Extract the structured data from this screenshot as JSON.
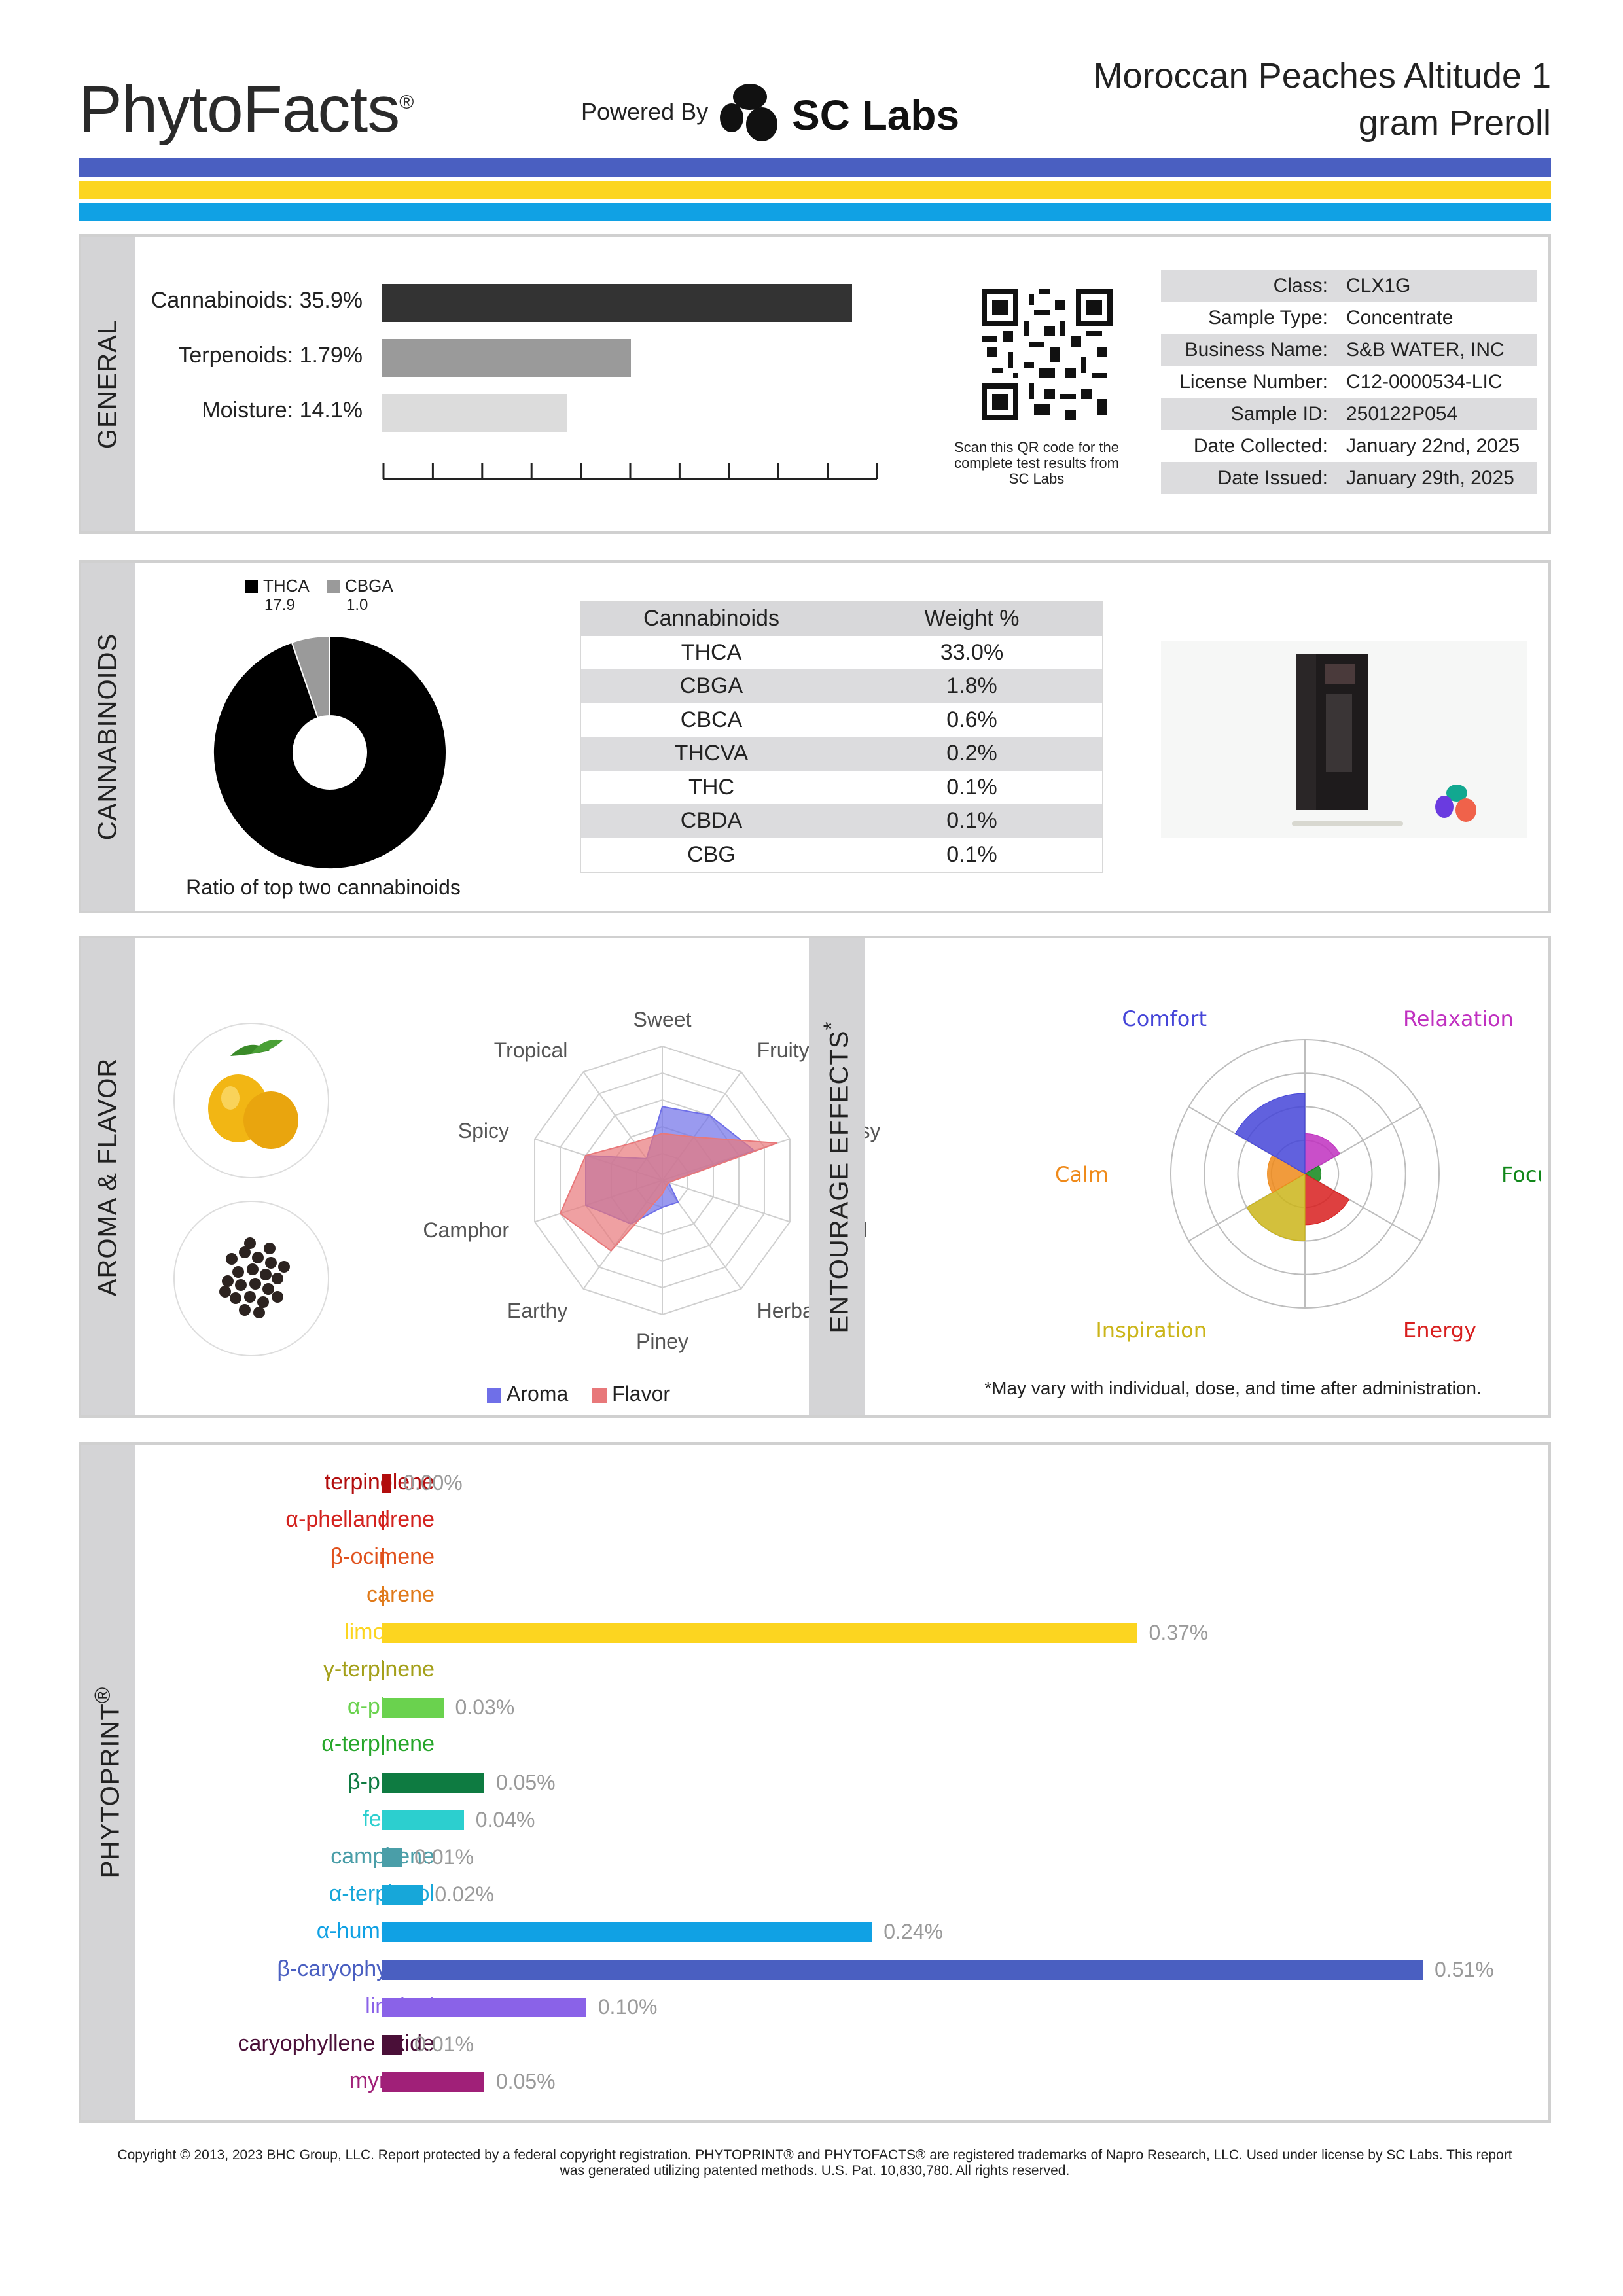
{
  "header": {
    "brand": "PhytoFacts",
    "brand_mark": "®",
    "powered_by": "Powered By",
    "lab_logo_text": "SC Labs",
    "title_line1": "Moroccan Peaches Altitude 1",
    "title_line2": "gram Preroll"
  },
  "colors": {
    "stripe_top": "#4a5fc1",
    "stripe_mid": "#fcd520",
    "stripe_bottom": "#10a1e4"
  },
  "general": {
    "tab": "GENERAL",
    "rows": [
      {
        "label": "Cannabinoids:",
        "value": "35.9%",
        "fraction": 0.718,
        "color": "#333333"
      },
      {
        "label": "Terpenoids:",
        "value": "1.79%",
        "fraction": 0.38,
        "color": "#9a9a9a"
      },
      {
        "label": "Moisture:",
        "value": "14.1%",
        "fraction": 0.282,
        "color": "#dcdcdc"
      }
    ],
    "qr_caption": "Scan this QR code for the complete test results from SC Labs",
    "info": [
      {
        "key": "Class:",
        "value": "CLX1G"
      },
      {
        "key": "Sample Type:",
        "value": "Concentrate"
      },
      {
        "key": "Business Name:",
        "value": "S&B WATER, INC"
      },
      {
        "key": "License Number:",
        "value": "C12-0000534-LIC"
      },
      {
        "key": "Sample ID:",
        "value": "250122P054"
      },
      {
        "key": "Date Collected:",
        "value": "January 22nd, 2025"
      },
      {
        "key": "Date Issued:",
        "value": "January 29th, 2025"
      }
    ]
  },
  "cannabinoids": {
    "tab": "CANNABINOIDS",
    "legend": [
      {
        "name": "THCA",
        "value": "17.9",
        "color": "#000000"
      },
      {
        "name": "CBGA",
        "value": "1.0",
        "color": "#9a9a9a"
      }
    ],
    "ratio_caption": "Ratio of top two cannabinoids",
    "table_header": {
      "col1": "Cannabinoids",
      "col2": "Weight %"
    },
    "table": [
      {
        "name": "THCA",
        "weight": "33.0%"
      },
      {
        "name": "CBGA",
        "weight": "1.8%"
      },
      {
        "name": "CBCA",
        "weight": "0.6%"
      },
      {
        "name": "THCVA",
        "weight": "0.2%"
      },
      {
        "name": "THC",
        "weight": "0.1%"
      },
      {
        "name": "CBDA",
        "weight": "0.1%"
      },
      {
        "name": "CBG",
        "weight": "0.1%"
      }
    ]
  },
  "aroma": {
    "tab": "AROMA & FLAVOR",
    "image1": "lemon-icon",
    "image2": "peppercorn-icon",
    "axes": [
      "Sweet",
      "Fruity",
      "Citrusy",
      "Floral",
      "Herbal",
      "Piney",
      "Earthy",
      "Camphor",
      "Spicy",
      "Tropical"
    ],
    "aroma_values": [
      0.55,
      0.6,
      0.72,
      0.05,
      0.2,
      0.2,
      0.4,
      0.6,
      0.6,
      0.2
    ],
    "flavor_values": [
      0.35,
      0.4,
      0.9,
      0.05,
      0.05,
      0.1,
      0.65,
      0.8,
      0.6,
      0.35
    ],
    "legend": [
      {
        "name": "Aroma",
        "color": "#6f6fe8"
      },
      {
        "name": "Flavor",
        "color": "#e8787a"
      }
    ]
  },
  "entourage": {
    "tab": "ENTOURAGE EFFECTS",
    "tab_mark": "*",
    "labels": [
      {
        "name": "Relaxation",
        "color": "#c030c0"
      },
      {
        "name": "Focus",
        "color": "#11871a"
      },
      {
        "name": "Energy",
        "color": "#d81e1e"
      },
      {
        "name": "Inspiration",
        "color": "#cbb51a"
      },
      {
        "name": "Calm",
        "color": "#ef8a1a"
      },
      {
        "name": "Comfort",
        "color": "#4545d8"
      }
    ],
    "values": [
      0.3,
      0.12,
      0.38,
      0.5,
      0.28,
      0.6
    ],
    "note": "*May vary with individual, dose, and time after administration."
  },
  "phytoprint": {
    "tab": "PHYTOPRINT",
    "tab_mark": "®",
    "terpenes": [
      {
        "name": "terpinolene",
        "value": 0.0,
        "label": "0.00%",
        "color": "#b20d0d"
      },
      {
        "name": "α-phellandrene",
        "value": 0.0,
        "label": "",
        "color": "#d3221e"
      },
      {
        "name": "β-ocimene",
        "value": 0.0,
        "label": "",
        "color": "#e0511c"
      },
      {
        "name": "carene",
        "value": 0.0,
        "label": "",
        "color": "#e07a1a"
      },
      {
        "name": "limonene",
        "value": 0.37,
        "label": "0.37%",
        "color": "#fcd520"
      },
      {
        "name": "γ-terpinene",
        "value": 0.0,
        "label": "",
        "color": "#a4a01a"
      },
      {
        "name": "α-pinene",
        "value": 0.03,
        "label": "0.03%",
        "color": "#6ad24e"
      },
      {
        "name": "α-terpinene",
        "value": 0.0,
        "label": "",
        "color": "#26a62a"
      },
      {
        "name": "β-pinene",
        "value": 0.05,
        "label": "0.05%",
        "color": "#0e7b41"
      },
      {
        "name": "fenchol",
        "value": 0.04,
        "label": "0.04%",
        "color": "#2ccfcf"
      },
      {
        "name": "camphene",
        "value": 0.01,
        "label": "0.01%",
        "color": "#4a9ea8"
      },
      {
        "name": "α-terpineol",
        "value": 0.02,
        "label": "0.02%",
        "color": "#17a7d9"
      },
      {
        "name": "α-humulene",
        "value": 0.24,
        "label": "0.24%",
        "color": "#10a1e4"
      },
      {
        "name": "β-caryophyllene",
        "value": 0.51,
        "label": "0.51%",
        "color": "#4a5fc1"
      },
      {
        "name": "linalool",
        "value": 0.1,
        "label": "0.10%",
        "color": "#8a62e8"
      },
      {
        "name": "caryophyllene oxide",
        "value": 0.01,
        "label": "0.01%",
        "color": "#4a0f38"
      },
      {
        "name": "myrcene",
        "value": 0.05,
        "label": "0.05%",
        "color": "#a02078"
      }
    ]
  },
  "footer": {
    "line1": "Copyright © 2013, 2023 BHC Group, LLC. Report protected by a federal copyright registration. PHYTOPRINT® and PHYTOFACTS® are registered trademarks of Napro Research, LLC. Used under license by SC Labs. This report",
    "line2": "was generated utilizing patented methods. U.S. Pat. 10,830,780. All rights reserved."
  }
}
